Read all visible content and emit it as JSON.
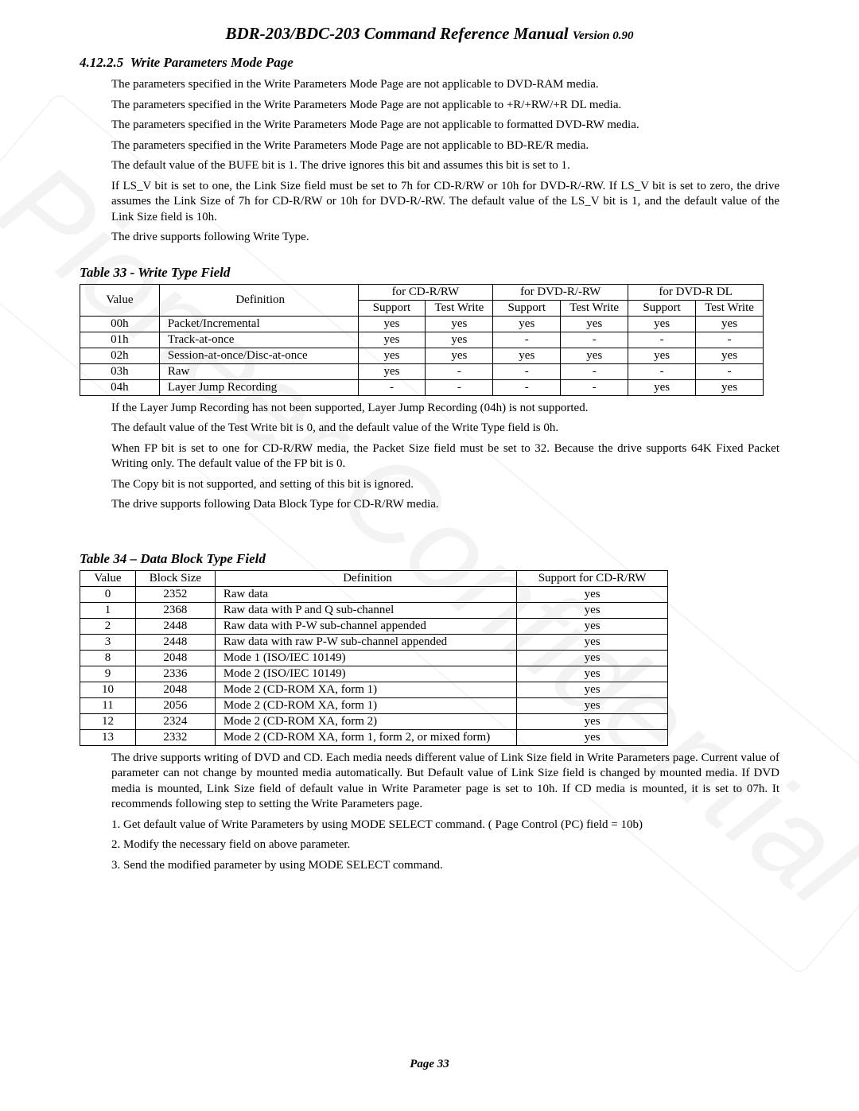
{
  "header": {
    "title_main": "BDR-203/BDC-203 Command Reference Manual ",
    "title_ver": "Version 0.90"
  },
  "watermark": "Pioneer Confidential",
  "section": {
    "number": "4.12.2.5",
    "title": "Write Parameters Mode Page"
  },
  "paras_intro": [
    "The parameters specified in the Write Parameters Mode Page are not applicable to DVD-RAM media.",
    "The parameters specified in the Write Parameters Mode Page are not applicable to +R/+RW/+R DL media.",
    "The parameters specified in the Write Parameters Mode Page are not applicable to formatted DVD-RW media.",
    "The parameters specified in the Write Parameters Mode Page are not applicable to BD-RE/R media.",
    "The default value of the BUFE bit is 1. The drive ignores this bit and assumes this bit is set to 1.",
    "If LS_V bit is set to one, the Link Size field must be set to 7h for CD-R/RW or 10h for DVD-R/-RW. If LS_V bit is set to zero, the drive assumes the Link Size of 7h for CD-R/RW or 10h for DVD-R/-RW. The default value of the LS_V bit is 1, and the default value of the Link Size field is 10h.",
    "The drive supports following Write Type."
  ],
  "table33": {
    "caption": "Table 33 - Write Type Field",
    "head": {
      "value": "Value",
      "definition": "Definition",
      "cd": "for CD-R/RW",
      "dvd": "for DVD-R/-RW",
      "dvddl": "for DVD-R DL",
      "support": "Support",
      "testwrite": "Test Write"
    },
    "rows": [
      {
        "v": "00h",
        "d": "Packet/Incremental",
        "cd_s": "yes",
        "cd_t": "yes",
        "dv_s": "yes",
        "dv_t": "yes",
        "dl_s": "yes",
        "dl_t": "yes"
      },
      {
        "v": "01h",
        "d": "Track-at-once",
        "cd_s": "yes",
        "cd_t": "yes",
        "dv_s": "-",
        "dv_t": "-",
        "dl_s": "-",
        "dl_t": "-"
      },
      {
        "v": "02h",
        "d": "Session-at-once/Disc-at-once",
        "cd_s": "yes",
        "cd_t": "yes",
        "dv_s": "yes",
        "dv_t": "yes",
        "dl_s": "yes",
        "dl_t": "yes"
      },
      {
        "v": "03h",
        "d": "Raw",
        "cd_s": "yes",
        "cd_t": "-",
        "dv_s": "-",
        "dv_t": "-",
        "dl_s": "-",
        "dl_t": "-"
      },
      {
        "v": "04h",
        "d": "Layer Jump Recording",
        "cd_s": "-",
        "cd_t": "-",
        "dv_s": "-",
        "dv_t": "-",
        "dl_s": "yes",
        "dl_t": "yes"
      }
    ]
  },
  "paras_mid": [
    "If the Layer Jump Recording has not been supported, Layer Jump Recording (04h) is not supported.",
    "The default value of the Test Write bit is 0, and the default value of the Write Type field is 0h.",
    "When FP bit is set to one for CD-R/RW media, the Packet Size field must be set to 32. Because the drive supports 64K Fixed Packet Writing only. The default value of the FP bit is 0.",
    "The Copy bit is not supported, and setting of this bit is ignored.",
    "The drive supports following Data Block Type for CD-R/RW media."
  ],
  "table34": {
    "caption": "Table 34 – Data Block Type Field",
    "head": {
      "value": "Value",
      "bs": "Block Size",
      "def": "Definition",
      "sup": "Support for CD-R/RW"
    },
    "rows": [
      {
        "v": "0",
        "b": "2352",
        "d": "Raw data",
        "s": "yes"
      },
      {
        "v": "1",
        "b": "2368",
        "d": "Raw data with P and Q sub-channel",
        "s": "yes"
      },
      {
        "v": "2",
        "b": "2448",
        "d": "Raw data with P-W sub-channel appended",
        "s": "yes"
      },
      {
        "v": "3",
        "b": "2448",
        "d": "Raw data with raw P-W sub-channel appended",
        "s": "yes"
      },
      {
        "v": "8",
        "b": "2048",
        "d": "Mode 1 (ISO/IEC 10149)",
        "s": "yes"
      },
      {
        "v": "9",
        "b": "2336",
        "d": "Mode 2 (ISO/IEC 10149)",
        "s": "yes"
      },
      {
        "v": "10",
        "b": "2048",
        "d": "Mode 2 (CD-ROM XA, form 1)",
        "s": "yes"
      },
      {
        "v": "11",
        "b": "2056",
        "d": "Mode 2 (CD-ROM XA, form 1)",
        "s": "yes"
      },
      {
        "v": "12",
        "b": "2324",
        "d": "Mode 2 (CD-ROM XA, form 2)",
        "s": "yes"
      },
      {
        "v": "13",
        "b": "2332",
        "d": "Mode 2 (CD-ROM XA, form 1, form 2, or mixed form)",
        "s": "yes"
      }
    ]
  },
  "paras_end": [
    "The drive supports writing of DVD and CD. Each media needs different value of Link Size field in  Write Parameters page. Current value of parameter can not change by mounted media automatically. But Default value of Link Size field is changed by mounted media. If DVD media is mounted, Link Size field of default value in Write Parameter page is set to 10h. If CD media is mounted, it is set to 07h. It recommends following step to setting the Write Parameters page.",
    "1. Get default value of Write Parameters by using MODE SELECT command. ( Page Control (PC) field = 10b)",
    "2. Modify the necessary field on above parameter.",
    "3. Send the modified parameter by using MODE SELECT command."
  ],
  "footer": {
    "label": "Page  33"
  }
}
